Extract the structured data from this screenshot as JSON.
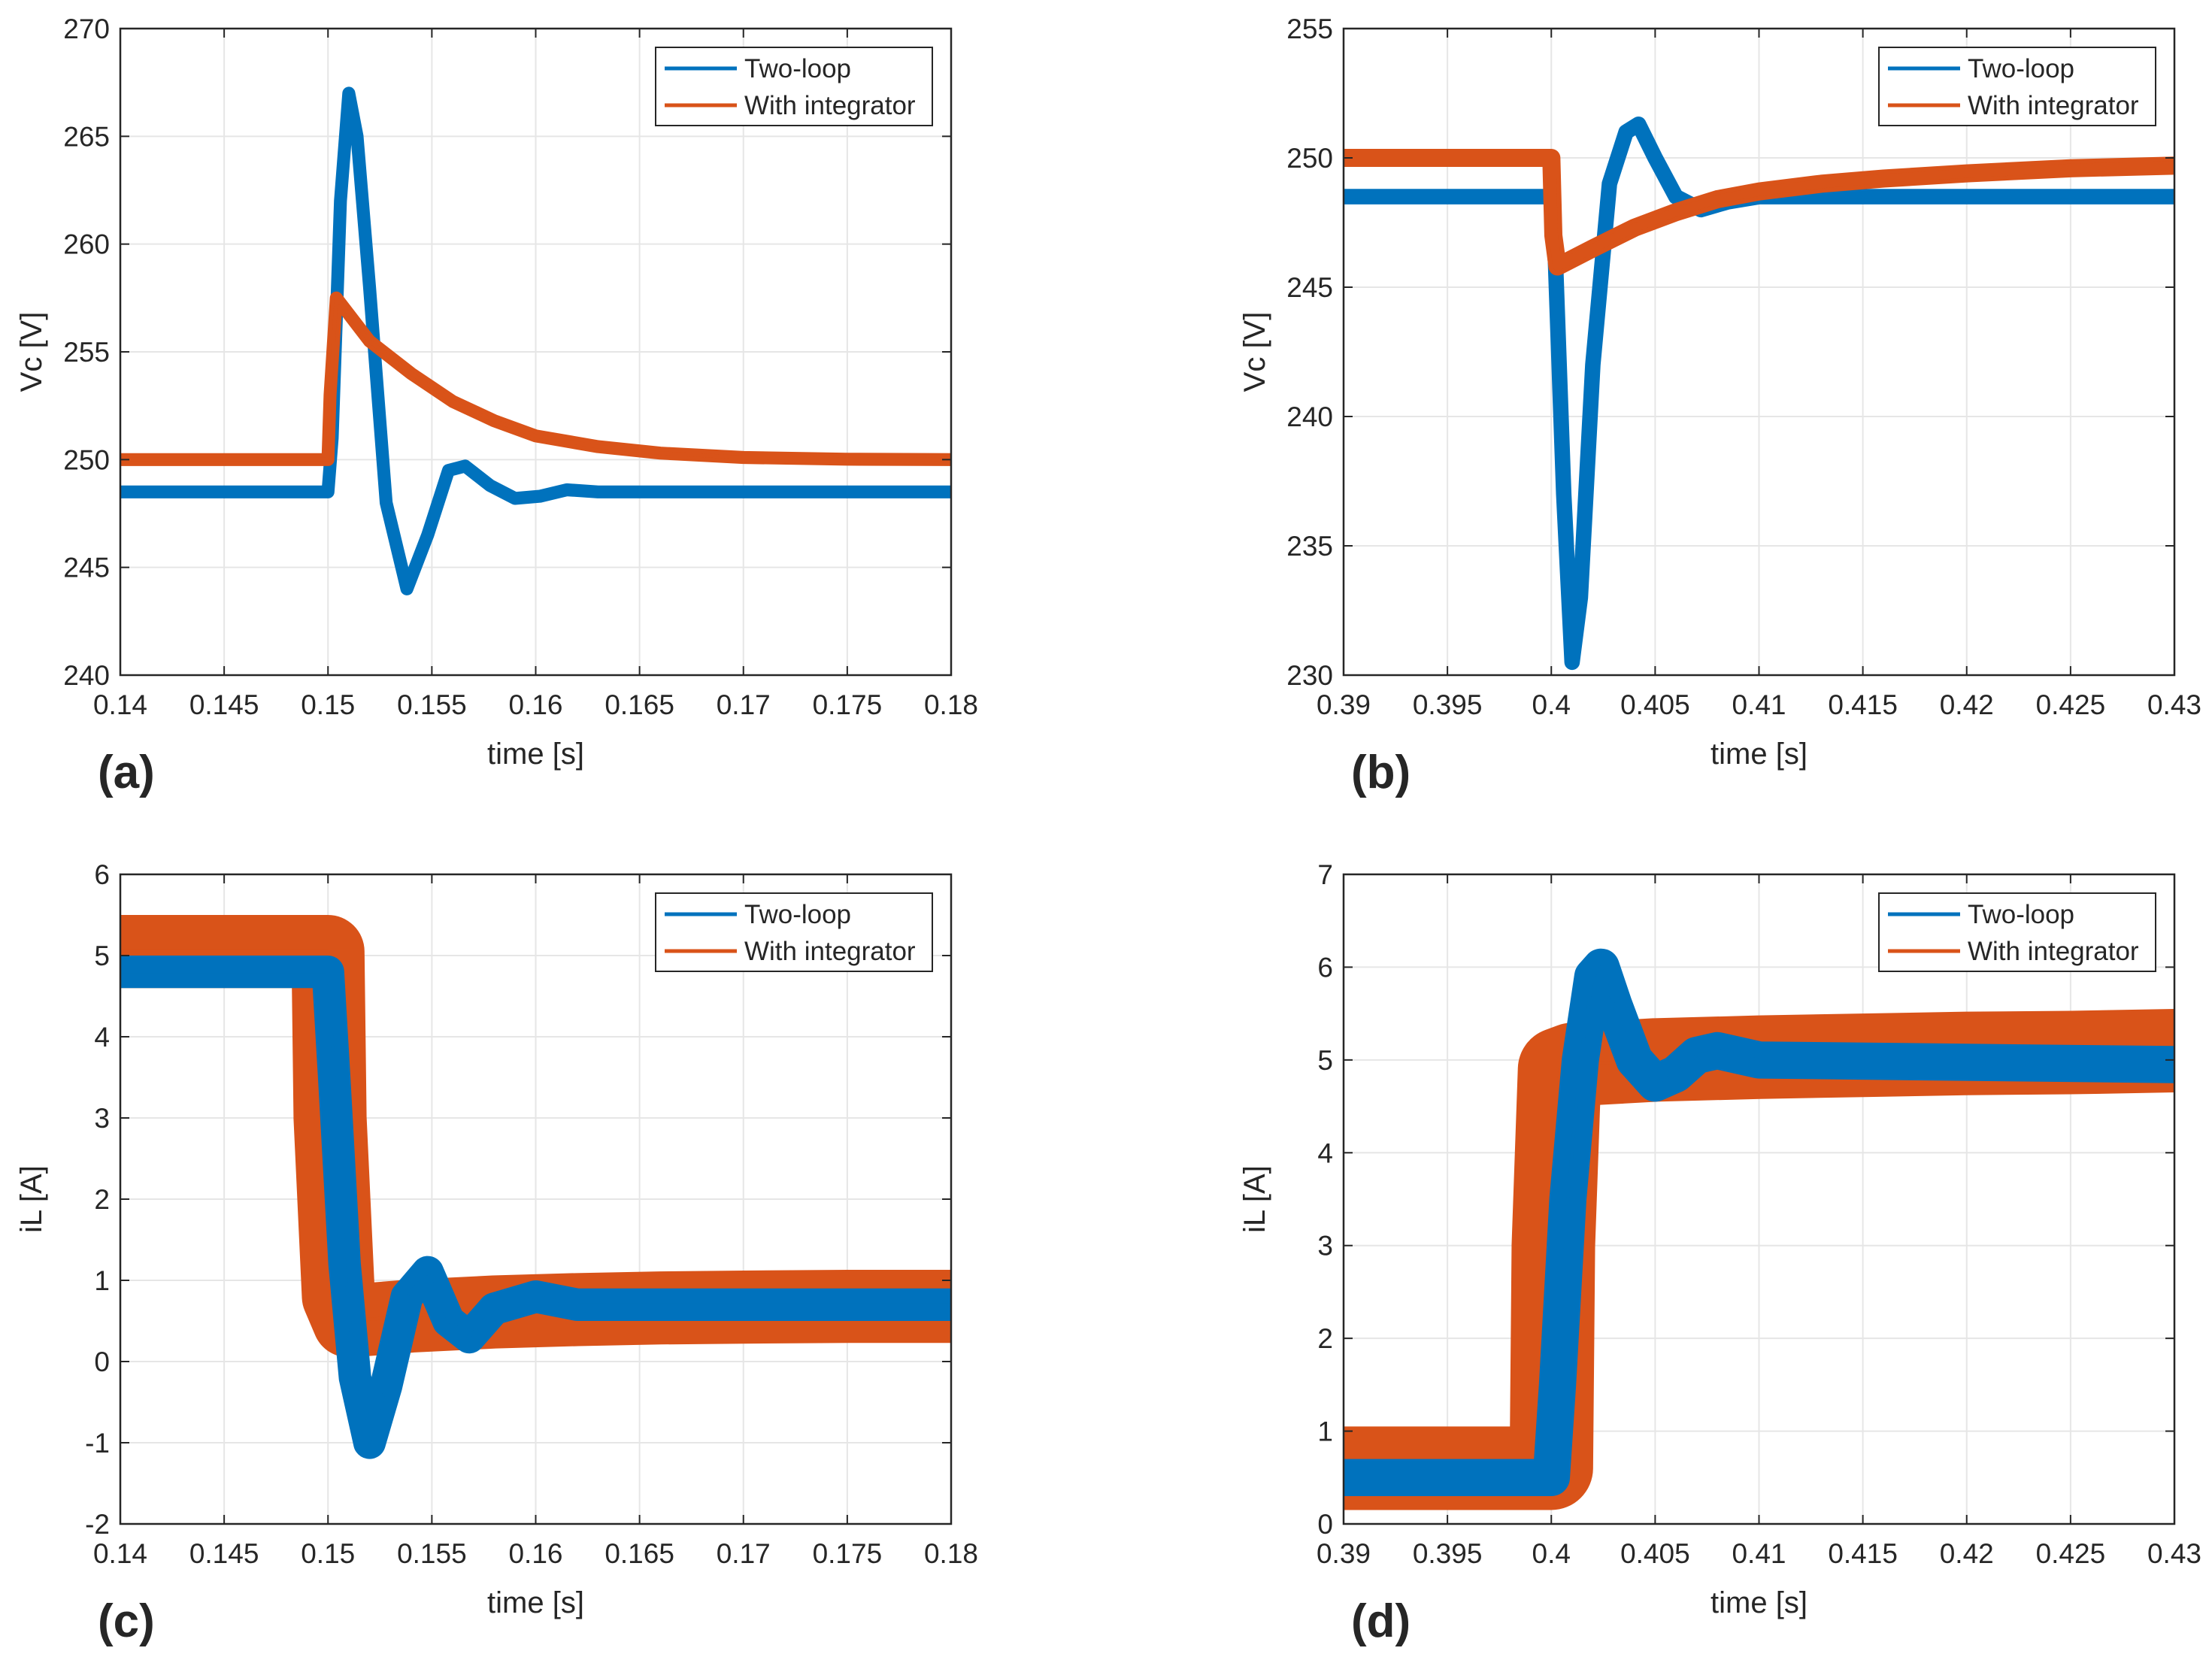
{
  "colors": {
    "series1": "#0072BD",
    "series2": "#D95319",
    "grid": "#e6e6e6",
    "axis": "#262626",
    "text": "#262626"
  },
  "chart_data": [
    {
      "type": "line",
      "panel_label": "(a)",
      "xlabel": "time [s]",
      "ylabel": "Vc [V]",
      "xlim": [
        0.14,
        0.18
      ],
      "ylim": [
        240,
        270
      ],
      "xticks": [
        0.14,
        0.145,
        0.15,
        0.155,
        0.16,
        0.165,
        0.17,
        0.175,
        0.18
      ],
      "xtick_labels": [
        "0.14",
        "0.145",
        "0.15",
        "0.155",
        "0.16",
        "0.165",
        "0.17",
        "0.175",
        "0.18"
      ],
      "yticks": [
        240,
        245,
        250,
        255,
        260,
        265,
        270
      ],
      "ytick_labels": [
        "240",
        "245",
        "250",
        "255",
        "260",
        "265",
        "270"
      ],
      "grid": true,
      "legend_position": "top-right",
      "series": [
        {
          "name": "Two-loop",
          "ripple": 0.3,
          "x": [
            0.14,
            0.15,
            0.1502,
            0.1506,
            0.151,
            0.1514,
            0.152,
            0.1528,
            0.1538,
            0.1548,
            0.1558,
            0.1566,
            0.1578,
            0.159,
            0.1602,
            0.1615,
            0.163,
            0.18
          ],
          "y": [
            248.5,
            248.5,
            251,
            262,
            267,
            265,
            258,
            248,
            244,
            246.5,
            249.5,
            249.7,
            248.8,
            248.2,
            248.3,
            248.6,
            248.5,
            248.5
          ]
        },
        {
          "name": "With integrator",
          "ripple": 0.3,
          "x": [
            0.14,
            0.15,
            0.1501,
            0.1504,
            0.152,
            0.154,
            0.156,
            0.158,
            0.16,
            0.163,
            0.166,
            0.17,
            0.175,
            0.18
          ],
          "y": [
            250,
            250,
            253,
            257.5,
            255.5,
            254,
            252.7,
            251.8,
            251.1,
            250.6,
            250.3,
            250.1,
            250.02,
            250
          ]
        }
      ]
    },
    {
      "type": "line",
      "panel_label": "(b)",
      "xlabel": "time [s]",
      "ylabel": "Vc [V]",
      "xlim": [
        0.39,
        0.43
      ],
      "ylim": [
        230,
        255
      ],
      "xticks": [
        0.39,
        0.395,
        0.4,
        0.405,
        0.41,
        0.415,
        0.42,
        0.425,
        0.43
      ],
      "xtick_labels": [
        "0.39",
        "0.395",
        "0.4",
        "0.405",
        "0.41",
        "0.415",
        "0.42",
        "0.425",
        "0.43"
      ],
      "yticks": [
        230,
        235,
        240,
        245,
        250,
        255
      ],
      "ytick_labels": [
        "230",
        "235",
        "240",
        "245",
        "250",
        "255"
      ],
      "grid": true,
      "legend_position": "top-right",
      "series": [
        {
          "name": "Two-loop",
          "ripple": 0.3,
          "x": [
            0.39,
            0.4,
            0.4002,
            0.4006,
            0.401,
            0.4014,
            0.402,
            0.4028,
            0.4036,
            0.4042,
            0.405,
            0.406,
            0.4072,
            0.4085,
            0.41,
            0.415,
            0.43
          ],
          "y": [
            248.5,
            248.5,
            246,
            237,
            230.5,
            233,
            242,
            249,
            251,
            251.3,
            250,
            248.5,
            248,
            248.3,
            248.5,
            248.5,
            248.5
          ]
        },
        {
          "name": "With integrator",
          "ripple": 0.35,
          "x": [
            0.39,
            0.4,
            0.4001,
            0.4003,
            0.402,
            0.404,
            0.406,
            0.408,
            0.41,
            0.413,
            0.416,
            0.42,
            0.425,
            0.43
          ],
          "y": [
            250,
            250,
            247,
            245.8,
            246.5,
            247.3,
            247.9,
            248.4,
            248.7,
            249.0,
            249.2,
            249.4,
            249.6,
            249.7
          ]
        }
      ]
    },
    {
      "type": "line",
      "panel_label": "(c)",
      "xlabel": "time [s]",
      "ylabel": "iL [A]",
      "xlim": [
        0.14,
        0.18
      ],
      "ylim": [
        -2,
        6
      ],
      "xticks": [
        0.14,
        0.145,
        0.15,
        0.155,
        0.16,
        0.165,
        0.17,
        0.175,
        0.18
      ],
      "xtick_labels": [
        "0.14",
        "0.145",
        "0.15",
        "0.155",
        "0.16",
        "0.165",
        "0.17",
        "0.175",
        "0.18"
      ],
      "yticks": [
        -2,
        -1,
        0,
        1,
        2,
        3,
        4,
        5,
        6
      ],
      "ytick_labels": [
        "-2",
        "-1",
        "0",
        "1",
        "2",
        "3",
        "4",
        "5",
        "6"
      ],
      "grid": true,
      "legend_position": "top-right",
      "series": [
        {
          "name": "Two-loop",
          "ripple": 0.2,
          "x": [
            0.14,
            0.15,
            0.1503,
            0.1508,
            0.1513,
            0.152,
            0.1528,
            0.1538,
            0.1548,
            0.1558,
            0.1568,
            0.158,
            0.16,
            0.162,
            0.18
          ],
          "y": [
            4.8,
            4.8,
            3.5,
            1.2,
            -0.2,
            -1.0,
            -0.3,
            0.8,
            1.1,
            0.5,
            0.3,
            0.65,
            0.8,
            0.7,
            0.7
          ]
        },
        {
          "name": "With integrator",
          "ripple": 0.45,
          "x": [
            0.14,
            0.15,
            0.1501,
            0.1505,
            0.151,
            0.154,
            0.158,
            0.162,
            0.166,
            0.17,
            0.175,
            0.18
          ],
          "y": [
            5.05,
            5.05,
            3,
            0.8,
            0.5,
            0.56,
            0.61,
            0.64,
            0.66,
            0.67,
            0.68,
            0.68
          ]
        }
      ]
    },
    {
      "type": "line",
      "panel_label": "(d)",
      "xlabel": "time [s]",
      "ylabel": "iL [A]",
      "xlim": [
        0.39,
        0.43
      ],
      "ylim": [
        0,
        7
      ],
      "xticks": [
        0.39,
        0.395,
        0.4,
        0.405,
        0.41,
        0.415,
        0.42,
        0.425,
        0.43
      ],
      "xtick_labels": [
        "0.39",
        "0.395",
        "0.4",
        "0.405",
        "0.41",
        "0.415",
        "0.42",
        "0.425",
        "0.43"
      ],
      "yticks": [
        0,
        1,
        2,
        3,
        4,
        5,
        6,
        7
      ],
      "ytick_labels": [
        "0",
        "1",
        "2",
        "3",
        "4",
        "5",
        "6",
        "7"
      ],
      "grid": true,
      "legend_position": "top-right",
      "series": [
        {
          "name": "Two-loop",
          "ripple": 0.2,
          "x": [
            0.39,
            0.4,
            0.4003,
            0.4008,
            0.4014,
            0.402,
            0.4024,
            0.403,
            0.404,
            0.405,
            0.406,
            0.407,
            0.408,
            0.41,
            0.43
          ],
          "y": [
            0.5,
            0.5,
            1.5,
            3.5,
            5.0,
            5.9,
            6.0,
            5.6,
            5.0,
            4.75,
            4.85,
            5.05,
            5.1,
            5.0,
            4.95
          ]
        },
        {
          "name": "With integrator",
          "ripple": 0.45,
          "x": [
            0.39,
            0.4,
            0.4001,
            0.4004,
            0.401,
            0.405,
            0.41,
            0.415,
            0.42,
            0.425,
            0.43
          ],
          "y": [
            0.6,
            0.6,
            3,
            4.9,
            4.95,
            5.0,
            5.03,
            5.05,
            5.07,
            5.08,
            5.1
          ]
        }
      ]
    }
  ]
}
